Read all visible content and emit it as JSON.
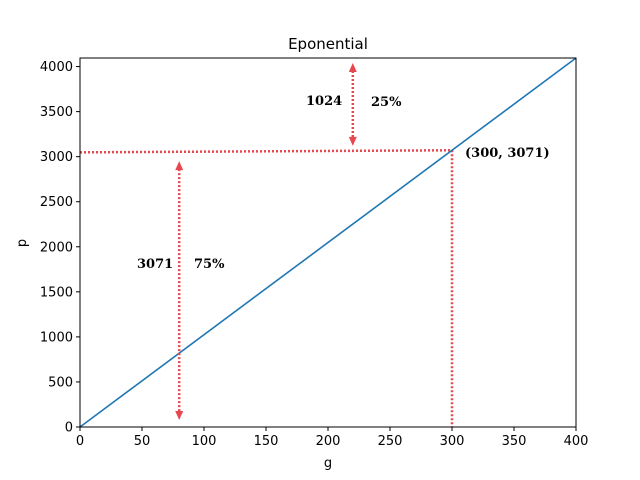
{
  "chart_data": {
    "type": "line",
    "title": "Eponential",
    "xlabel": "g",
    "ylabel": "p",
    "xlim": [
      0,
      400
    ],
    "ylim": [
      0,
      4095
    ],
    "xticks": [
      0,
      50,
      100,
      150,
      200,
      250,
      300,
      350,
      400
    ],
    "yticks": [
      0,
      500,
      1000,
      1500,
      2000,
      2500,
      3000,
      3500,
      4000
    ],
    "grid": false,
    "series": [
      {
        "color": "#1f77b4",
        "x": [
          0,
          400
        ],
        "y": [
          0,
          4095
        ]
      }
    ],
    "highlight_point": {
      "x": 300,
      "y": 3071,
      "label": "(300, 3071)"
    },
    "annotations": {
      "lower": {
        "value": "3071",
        "percent": "75%"
      },
      "upper": {
        "value": "1024",
        "percent": "25%"
      }
    },
    "annotation_color": "#e8474f"
  }
}
